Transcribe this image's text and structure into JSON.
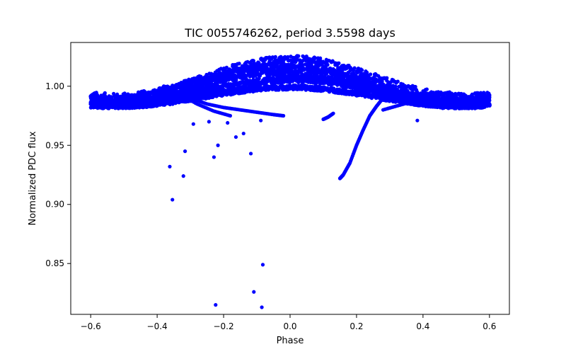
{
  "chart_data": {
    "type": "scatter",
    "title": "TIC 0055746262, period 3.5598 days",
    "xlabel": "Phase",
    "ylabel": "Normalized PDC flux",
    "xlim": [
      -0.66,
      0.66
    ],
    "ylim": [
      0.807,
      1.037
    ],
    "xticks": [
      -0.6,
      -0.4,
      -0.2,
      0.0,
      0.2,
      0.4,
      0.6
    ],
    "xtick_labels": [
      "−0.6",
      "−0.4",
      "−0.2",
      "0.0",
      "0.2",
      "0.4",
      "0.6"
    ],
    "yticks": [
      0.85,
      0.9,
      0.95,
      1.0
    ],
    "ytick_labels": [
      "0.85",
      "0.90",
      "0.95",
      "1.00"
    ],
    "grid": false,
    "marker_color": "#0000ff",
    "series": [
      {
        "description": "main phase-folded light curve bands (sinusoidal, minimum near phase 0)",
        "bands": [
          {
            "amplitude": 0.016,
            "offset": 1.004,
            "phase_shift": 0.0,
            "spread": 0.006
          },
          {
            "amplitude": 0.014,
            "offset": 1.0,
            "phase_shift": 0.03,
            "spread": 0.005
          },
          {
            "amplitude": 0.01,
            "offset": 0.996,
            "phase_shift": -0.02,
            "spread": 0.003
          },
          {
            "amplitude": 0.008,
            "offset": 0.991,
            "phase_shift": 0.0,
            "spread": 0.002
          }
        ]
      }
    ],
    "trend_branches": [
      {
        "x": [
          -0.35,
          -0.3,
          -0.25,
          -0.2,
          -0.15,
          -0.1,
          -0.05,
          -0.02
        ],
        "y": [
          0.995,
          0.99,
          0.985,
          0.982,
          0.98,
          0.978,
          0.976,
          0.975
        ]
      },
      {
        "x": [
          -0.38,
          -0.33,
          -0.28,
          -0.23,
          -0.18
        ],
        "y": [
          1.0,
          0.993,
          0.985,
          0.979,
          0.975
        ]
      },
      {
        "x": [
          0.15,
          0.16,
          0.18,
          0.2,
          0.22,
          0.24,
          0.26,
          0.28
        ],
        "y": [
          0.922,
          0.925,
          0.935,
          0.95,
          0.963,
          0.975,
          0.983,
          0.99
        ]
      },
      {
        "x": [
          0.12,
          0.14,
          0.16,
          0.18
        ],
        "y": [
          1.015,
          1.01,
          1.004,
          0.999
        ]
      },
      {
        "x": [
          0.28,
          0.33,
          0.38,
          0.43,
          0.48
        ],
        "y": [
          0.98,
          0.984,
          0.988,
          0.992,
          0.995
        ]
      },
      {
        "x": [
          0.1,
          0.115,
          0.13
        ],
        "y": [
          0.972,
          0.974,
          0.977
        ]
      }
    ],
    "outliers": {
      "x": [
        -0.516,
        -0.362,
        -0.354,
        -0.321,
        -0.316,
        -0.291,
        -0.244,
        -0.229,
        -0.224,
        -0.217,
        -0.188,
        -0.163,
        -0.14,
        -0.118,
        -0.109,
        -0.088,
        -0.085,
        -0.082,
        0.383,
        0.486
      ],
      "y": [
        0.985,
        0.932,
        0.904,
        0.924,
        0.945,
        0.968,
        0.97,
        0.94,
        0.815,
        0.95,
        0.969,
        0.957,
        0.96,
        0.943,
        0.826,
        0.971,
        0.813,
        0.849,
        0.971,
        0.985
      ]
    }
  }
}
